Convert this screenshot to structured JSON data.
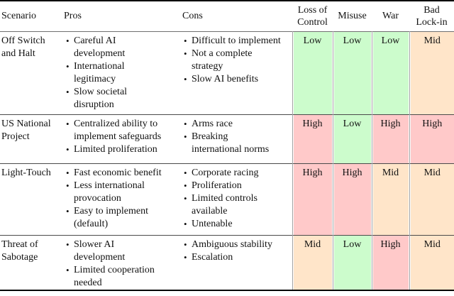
{
  "table": {
    "header": {
      "scenario": "Scenario",
      "pros": "Pros",
      "cons": "Cons",
      "ratings": [
        "Loss of\nControl",
        "Misuse",
        "War",
        "Bad\nLock-in"
      ]
    },
    "rating_colors": {
      "Low": "#ccfccc",
      "Mid": "#ffe5c9",
      "High": "#ffc9c9"
    },
    "rows": [
      {
        "scenario": "Off Switch\nand Halt",
        "pros": [
          "Careful AI\ndevelopment",
          "International\nlegitimacy",
          "Slow societal\ndisruption"
        ],
        "cons": [
          "Difficult to implement",
          "Not a complete\nstrategy",
          "Slow AI benefits"
        ],
        "ratings": [
          "Low",
          "Low",
          "Low",
          "Mid"
        ]
      },
      {
        "scenario": "US National\nProject",
        "pros": [
          "Centralized ability to\nimplement safeguards",
          "Limited proliferation"
        ],
        "cons": [
          "Arms race",
          "Breaking\ninternational norms"
        ],
        "ratings": [
          "High",
          "Low",
          "High",
          "High"
        ]
      },
      {
        "scenario": "Light-Touch",
        "pros": [
          "Fast economic benefit",
          "Less international\nprovocation",
          "Easy to implement\n(default)"
        ],
        "cons": [
          "Corporate racing",
          "Proliferation",
          "Limited controls\navailable",
          "Untenable"
        ],
        "ratings": [
          "High",
          "High",
          "Mid",
          "Mid"
        ]
      },
      {
        "scenario": "Threat of\nSabotage",
        "pros": [
          "Slower AI\ndevelopment",
          "Limited cooperation\nneeded"
        ],
        "cons": [
          "Ambiguous stability",
          "Escalation"
        ],
        "ratings": [
          "Mid",
          "Low",
          "High",
          "Mid"
        ]
      }
    ]
  }
}
